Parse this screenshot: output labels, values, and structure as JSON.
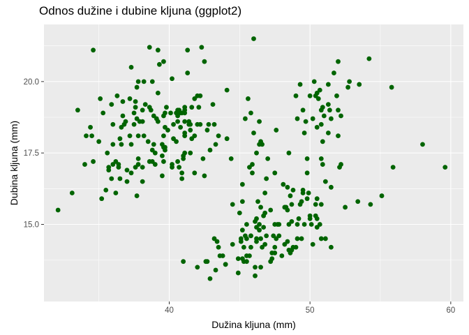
{
  "chart_data": {
    "type": "scatter",
    "title": "Odnos dužine i dubine kljuna (ggplot2)",
    "xlabel": "Dužina kljuna (mm)",
    "ylabel": "Dubina kljuna (mm)",
    "xlim": [
      31.1,
      60.9
    ],
    "ylim": [
      12.3,
      22.0
    ],
    "xticks": [
      40,
      50,
      60
    ],
    "yticks": [
      15.0,
      17.5,
      20.0
    ],
    "ytick_labels": [
      "15.0",
      "17.5",
      "20.0"
    ],
    "xtick_labels": [
      "40",
      "50",
      "60"
    ],
    "grid": true,
    "point_color": "#006400",
    "panel_color": "#ebebeb",
    "points": [
      [
        32.1,
        15.5
      ],
      [
        33.1,
        16.1
      ],
      [
        33.5,
        19.0
      ],
      [
        34.0,
        17.1
      ],
      [
        34.1,
        18.1
      ],
      [
        34.4,
        18.4
      ],
      [
        34.5,
        18.1
      ],
      [
        34.6,
        21.1
      ],
      [
        34.6,
        17.2
      ],
      [
        35.0,
        17.9
      ],
      [
        35.1,
        19.4
      ],
      [
        35.2,
        15.9
      ],
      [
        35.3,
        18.9
      ],
      [
        35.5,
        16.2
      ],
      [
        35.6,
        17.5
      ],
      [
        35.7,
        16.9
      ],
      [
        35.7,
        17.0
      ],
      [
        35.9,
        16.6
      ],
      [
        35.9,
        19.2
      ],
      [
        36.0,
        17.1
      ],
      [
        36.0,
        17.8
      ],
      [
        36.0,
        18.5
      ],
      [
        36.2,
        16.1
      ],
      [
        36.2,
        17.2
      ],
      [
        36.3,
        19.5
      ],
      [
        36.4,
        17.0
      ],
      [
        36.4,
        17.1
      ],
      [
        36.5,
        16.6
      ],
      [
        36.5,
        18.0
      ],
      [
        36.6,
        17.8
      ],
      [
        36.6,
        18.4
      ],
      [
        36.7,
        18.8
      ],
      [
        36.7,
        19.3
      ],
      [
        36.8,
        18.5
      ],
      [
        36.9,
        18.6
      ],
      [
        37.0,
        16.5
      ],
      [
        37.0,
        16.9
      ],
      [
        37.2,
        18.1
      ],
      [
        37.2,
        19.4
      ],
      [
        37.3,
        16.8
      ],
      [
        37.3,
        17.8
      ],
      [
        37.3,
        20.5
      ],
      [
        37.5,
        18.9
      ],
      [
        37.5,
        18.5
      ],
      [
        37.6,
        17.0
      ],
      [
        37.6,
        19.1
      ],
      [
        37.6,
        19.3
      ],
      [
        37.7,
        16.0
      ],
      [
        37.7,
        18.7
      ],
      [
        37.7,
        19.8
      ],
      [
        37.8,
        17.1
      ],
      [
        37.8,
        17.3
      ],
      [
        37.8,
        18.1
      ],
      [
        37.8,
        20.0
      ],
      [
        37.9,
        18.6
      ],
      [
        38.1,
        16.5
      ],
      [
        38.1,
        17.0
      ],
      [
        38.1,
        18.6
      ],
      [
        38.1,
        19.0
      ],
      [
        38.2,
        18.1
      ],
      [
        38.2,
        20.0
      ],
      [
        38.3,
        19.2
      ],
      [
        38.5,
        17.9
      ],
      [
        38.6,
        17.2
      ],
      [
        38.6,
        19.1
      ],
      [
        38.6,
        21.2
      ],
      [
        38.7,
        19.0
      ],
      [
        38.8,
        17.2
      ],
      [
        38.8,
        17.6
      ],
      [
        38.8,
        20.0
      ],
      [
        38.9,
        17.8
      ],
      [
        38.9,
        18.8
      ],
      [
        39.0,
        17.1
      ],
      [
        39.0,
        17.5
      ],
      [
        39.1,
        18.7
      ],
      [
        39.2,
        18.6
      ],
      [
        39.2,
        19.6
      ],
      [
        39.2,
        21.1
      ],
      [
        39.3,
        20.6
      ],
      [
        39.5,
        16.7
      ],
      [
        39.5,
        17.4
      ],
      [
        39.5,
        17.8
      ],
      [
        39.6,
        17.2
      ],
      [
        39.6,
        17.7
      ],
      [
        39.6,
        18.1
      ],
      [
        39.6,
        18.8
      ],
      [
        39.6,
        20.7
      ],
      [
        39.7,
        17.6
      ],
      [
        39.7,
        17.7
      ],
      [
        39.7,
        18.4
      ],
      [
        39.7,
        18.9
      ],
      [
        39.8,
        19.1
      ],
      [
        39.9,
        18.3
      ],
      [
        40.1,
        18.9
      ],
      [
        40.2,
        17.0
      ],
      [
        40.2,
        17.1
      ],
      [
        40.2,
        20.1
      ],
      [
        40.3,
        18.0
      ],
      [
        40.3,
        18.5
      ],
      [
        40.5,
        17.9
      ],
      [
        40.5,
        18.9
      ],
      [
        40.6,
        17.2
      ],
      [
        40.6,
        18.6
      ],
      [
        40.6,
        18.8
      ],
      [
        40.6,
        19.0
      ],
      [
        40.7,
        17.0
      ],
      [
        40.7,
        19.0
      ],
      [
        40.8,
        18.4
      ],
      [
        40.8,
        18.9
      ],
      [
        40.9,
        16.6
      ],
      [
        40.9,
        16.8
      ],
      [
        40.9,
        18.9
      ],
      [
        41.0,
        17.4
      ],
      [
        41.0,
        17.3
      ],
      [
        41.1,
        17.5
      ],
      [
        41.1,
        18.1
      ],
      [
        41.1,
        18.2
      ],
      [
        41.1,
        18.6
      ],
      [
        41.1,
        18.9
      ],
      [
        41.1,
        19.0
      ],
      [
        41.1,
        19.1
      ],
      [
        41.3,
        20.3
      ],
      [
        41.3,
        21.1
      ],
      [
        41.4,
        18.5
      ],
      [
        41.4,
        18.6
      ],
      [
        41.5,
        17.5
      ],
      [
        41.5,
        18.3
      ],
      [
        41.5,
        18.5
      ],
      [
        41.6,
        18.0
      ],
      [
        41.6,
        19.1
      ],
      [
        41.8,
        19.4
      ],
      [
        41.8,
        18.1
      ],
      [
        41.8,
        16.8
      ],
      [
        42.0,
        18.5
      ],
      [
        42.0,
        19.5
      ],
      [
        42.1,
        19.1
      ],
      [
        42.2,
        18.5
      ],
      [
        42.2,
        19.5
      ],
      [
        42.3,
        21.2
      ],
      [
        42.4,
        17.3
      ],
      [
        42.5,
        20.7
      ],
      [
        42.5,
        16.7
      ],
      [
        42.7,
        18.3
      ],
      [
        42.8,
        18.5
      ],
      [
        42.9,
        17.6
      ],
      [
        43.1,
        19.2
      ],
      [
        43.2,
        18.5
      ],
      [
        43.3,
        17.8
      ],
      [
        43.3,
        13.4
      ],
      [
        43.5,
        18.1
      ],
      [
        43.6,
        13.9
      ],
      [
        44.0,
        13.6
      ],
      [
        44.1,
        18.0
      ],
      [
        44.1,
        19.7
      ],
      [
        44.4,
        17.3
      ],
      [
        44.5,
        15.7
      ],
      [
        44.9,
        13.8
      ],
      [
        45.1,
        14.5
      ],
      [
        45.2,
        13.8
      ],
      [
        45.2,
        16.4
      ],
      [
        45.2,
        14.8
      ],
      [
        45.2,
        15.8
      ],
      [
        45.3,
        13.7
      ],
      [
        45.4,
        14.6
      ],
      [
        45.4,
        18.7
      ],
      [
        45.5,
        13.7
      ],
      [
        45.5,
        13.9
      ],
      [
        45.5,
        15.0
      ],
      [
        45.6,
        19.4
      ],
      [
        45.7,
        13.9
      ],
      [
        45.7,
        17.0
      ],
      [
        45.8,
        14.2
      ],
      [
        45.8,
        14.6
      ],
      [
        45.8,
        18.9
      ],
      [
        45.9,
        17.1
      ],
      [
        46.0,
        21.5
      ],
      [
        46.1,
        13.2
      ],
      [
        46.1,
        15.1
      ],
      [
        46.2,
        14.4
      ],
      [
        46.2,
        14.5
      ],
      [
        46.2,
        14.9
      ],
      [
        46.2,
        17.5
      ],
      [
        46.3,
        15.8
      ],
      [
        46.4,
        15.0
      ],
      [
        46.4,
        17.8
      ],
      [
        46.4,
        18.6
      ],
      [
        46.5,
        13.5
      ],
      [
        46.5,
        14.5
      ],
      [
        46.5,
        17.9
      ],
      [
        46.6,
        14.2
      ],
      [
        46.6,
        17.8
      ],
      [
        46.7,
        15.3
      ],
      [
        46.8,
        14.3
      ],
      [
        46.8,
        15.4
      ],
      [
        46.8,
        16.1
      ],
      [
        46.9,
        14.6
      ],
      [
        46.9,
        16.6
      ],
      [
        47.0,
        17.3
      ],
      [
        47.2,
        13.7
      ],
      [
        47.2,
        15.5
      ],
      [
        47.3,
        13.8
      ],
      [
        47.4,
        14.6
      ],
      [
        47.5,
        14.0
      ],
      [
        47.5,
        15.0
      ],
      [
        47.5,
        16.8
      ],
      [
        47.6,
        14.5
      ],
      [
        47.6,
        18.3
      ],
      [
        47.7,
        15.0
      ],
      [
        47.8,
        15.0
      ],
      [
        48.1,
        16.4
      ],
      [
        48.2,
        14.3
      ],
      [
        48.2,
        15.6
      ],
      [
        48.4,
        14.4
      ],
      [
        48.4,
        16.3
      ],
      [
        48.5,
        14.1
      ],
      [
        48.5,
        15.0
      ],
      [
        48.5,
        17.5
      ],
      [
        48.6,
        16.0
      ],
      [
        48.7,
        14.1
      ],
      [
        48.7,
        15.1
      ],
      [
        48.7,
        15.7
      ],
      [
        48.8,
        16.2
      ],
      [
        49.0,
        19.5
      ],
      [
        49.1,
        14.5
      ],
      [
        49.1,
        15.0
      ],
      [
        49.1,
        18.7
      ],
      [
        49.2,
        15.2
      ],
      [
        49.3,
        15.7
      ],
      [
        49.3,
        19.9
      ],
      [
        49.4,
        15.8
      ],
      [
        49.5,
        16.1
      ],
      [
        49.5,
        16.2
      ],
      [
        49.5,
        19.0
      ],
      [
        49.6,
        15.0
      ],
      [
        49.6,
        18.2
      ],
      [
        49.7,
        18.6
      ],
      [
        49.8,
        15.9
      ],
      [
        49.8,
        16.8
      ],
      [
        49.8,
        17.3
      ],
      [
        49.9,
        16.1
      ],
      [
        50.0,
        15.2
      ],
      [
        50.0,
        15.3
      ],
      [
        50.0,
        19.5
      ],
      [
        50.1,
        15.0
      ],
      [
        50.2,
        18.7
      ],
      [
        50.3,
        20.0
      ],
      [
        50.4,
        15.3
      ],
      [
        50.4,
        15.7
      ],
      [
        50.4,
        19.5
      ],
      [
        50.5,
        15.2
      ],
      [
        50.5,
        15.9
      ],
      [
        50.5,
        18.4
      ],
      [
        50.5,
        19.6
      ],
      [
        50.6,
        19.4
      ],
      [
        50.7,
        15.0
      ],
      [
        50.7,
        19.7
      ],
      [
        50.8,
        15.7
      ],
      [
        50.8,
        17.3
      ],
      [
        50.8,
        18.5
      ],
      [
        50.8,
        19.0
      ],
      [
        50.9,
        17.1
      ],
      [
        50.9,
        17.9
      ],
      [
        50.9,
        19.1
      ],
      [
        51.0,
        18.8
      ],
      [
        51.1,
        14.5
      ],
      [
        51.1,
        16.5
      ],
      [
        51.3,
        18.2
      ],
      [
        51.3,
        19.2
      ],
      [
        51.3,
        19.9
      ],
      [
        51.4,
        19.0
      ],
      [
        51.5,
        16.3
      ],
      [
        51.5,
        18.7
      ],
      [
        51.7,
        20.3
      ],
      [
        51.9,
        19.5
      ],
      [
        52.0,
        18.1
      ],
      [
        52.0,
        19.0
      ],
      [
        52.0,
        20.7
      ],
      [
        52.1,
        17.0
      ],
      [
        52.2,
        17.1
      ],
      [
        52.2,
        18.8
      ],
      [
        52.5,
        15.6
      ],
      [
        52.7,
        19.8
      ],
      [
        52.8,
        20.0
      ],
      [
        53.4,
        15.8
      ],
      [
        53.5,
        19.9
      ],
      [
        54.2,
        20.8
      ],
      [
        54.3,
        15.7
      ],
      [
        55.1,
        16.0
      ],
      [
        55.8,
        19.8
      ],
      [
        55.9,
        17.0
      ],
      [
        58.0,
        17.8
      ],
      [
        59.6,
        17.0
      ],
      [
        41.0,
        13.7
      ],
      [
        42.0,
        13.5
      ],
      [
        42.6,
        13.7
      ],
      [
        42.7,
        13.7
      ],
      [
        42.9,
        13.1
      ],
      [
        43.2,
        14.5
      ],
      [
        43.4,
        14.4
      ],
      [
        43.5,
        14.2
      ],
      [
        43.8,
        13.9
      ],
      [
        44.0,
        13.6
      ],
      [
        44.5,
        14.3
      ],
      [
        44.9,
        13.3
      ],
      [
        45.0,
        15.4
      ],
      [
        45.1,
        14.4
      ],
      [
        45.3,
        14.2
      ],
      [
        45.5,
        14.5
      ],
      [
        45.8,
        14.6
      ],
      [
        46.1,
        13.5
      ],
      [
        46.2,
        15.2
      ],
      [
        46.4,
        14.8
      ],
      [
        46.5,
        15.6
      ],
      [
        46.7,
        14.9
      ],
      [
        47.3,
        14.0
      ],
      [
        47.5,
        14.2
      ],
      [
        47.8,
        14.6
      ],
      [
        48.0,
        13.9
      ],
      [
        48.3,
        15.6
      ],
      [
        48.4,
        15.5
      ],
      [
        48.6,
        14.0
      ],
      [
        48.8,
        14.2
      ],
      [
        49.0,
        14.2
      ],
      [
        49.4,
        14.5
      ],
      [
        50.2,
        14.3
      ],
      [
        50.5,
        14.9
      ],
      [
        50.8,
        14.5
      ],
      [
        51.5,
        14.2
      ],
      [
        45.9,
        16.8
      ],
      [
        46.0,
        18.2
      ]
    ]
  }
}
